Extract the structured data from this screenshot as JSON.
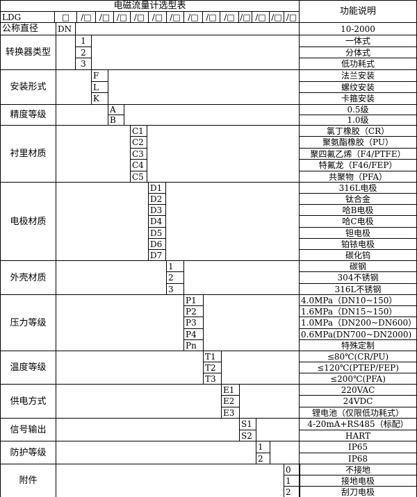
{
  "title": "电磁流量计选型表",
  "function_header": "功能说明",
  "model_row": {
    "prefix": "LDG",
    "first_box": "□",
    "box": "/□"
  },
  "nominal": {
    "label": "公称直径",
    "code": "DN",
    "desc": "10-2000"
  },
  "groups": [
    {
      "label": "转换器类型",
      "codes": [
        "1",
        "2",
        "3"
      ],
      "descs": [
        "一体式",
        "分体式",
        "低功耗式"
      ]
    },
    {
      "label": "安装形式",
      "codes": [
        "F",
        "L",
        "K"
      ],
      "descs": [
        "法兰安装",
        "螺纹安装",
        "卡箍安装"
      ]
    },
    {
      "label": "精度等级",
      "codes": [
        "A",
        "B"
      ],
      "descs": [
        "0.5级",
        "1.0级"
      ]
    },
    {
      "label": "衬里材质",
      "codes": [
        "C1",
        "C2",
        "C3",
        "C4",
        "C5"
      ],
      "descs": [
        "氯丁橡胶（CR）",
        "聚氨酯橡胶（PU）",
        "聚四氟乙烯（F4/PTFE）",
        "特氟龙（F46/FEP）",
        "共聚物（PFA）"
      ]
    },
    {
      "label": "电极材质",
      "codes": [
        "D1",
        "D2",
        "D3",
        "D4",
        "D5",
        "D6",
        "D7"
      ],
      "descs": [
        "316L电极",
        "钛合金",
        "哈B电极",
        "哈C电极",
        "钽电极",
        "铂铱电极",
        "碳化钨"
      ]
    },
    {
      "label": "外壳材质",
      "codes": [
        "1",
        "2",
        "3"
      ],
      "descs": [
        "碳钢",
        "304不锈钢",
        "316L不锈钢"
      ]
    },
    {
      "label": "压力等级",
      "codes": [
        "P1",
        "P2",
        "P3",
        "P4",
        "Pn"
      ],
      "descs": [
        "4.0MPa（DN10~150）",
        "1.6MPa（DN15~150）",
        "1.0MPa（DN200~DN600）",
        "0.6MPa(DN700~DN2000)",
        "特殊定制"
      ]
    },
    {
      "label": "温度等级",
      "codes": [
        "T1",
        "T2",
        "T3"
      ],
      "descs": [
        "≤80℃(CR/PU)",
        "≤120℃(PTEP/FEP)",
        "≤200℃(PFA)"
      ]
    },
    {
      "label": "供电方式",
      "codes": [
        "E1",
        "E2",
        "E3"
      ],
      "descs": [
        "220VAC",
        "24VDC",
        "锂电池（仅限低功耗式）"
      ]
    },
    {
      "label": "信号输出",
      "codes": [
        "S1",
        "S2"
      ],
      "descs": [
        "4-20mA+RS485（标配）",
        "HART"
      ]
    },
    {
      "label": "防护等级",
      "codes": [
        "1",
        "2"
      ],
      "descs": [
        "IP65",
        "IP68"
      ]
    },
    {
      "label": "附件",
      "codes": [
        "0",
        "1",
        "2"
      ],
      "descs": [
        "不接地",
        "接地电极",
        "刮刀电极"
      ]
    }
  ]
}
